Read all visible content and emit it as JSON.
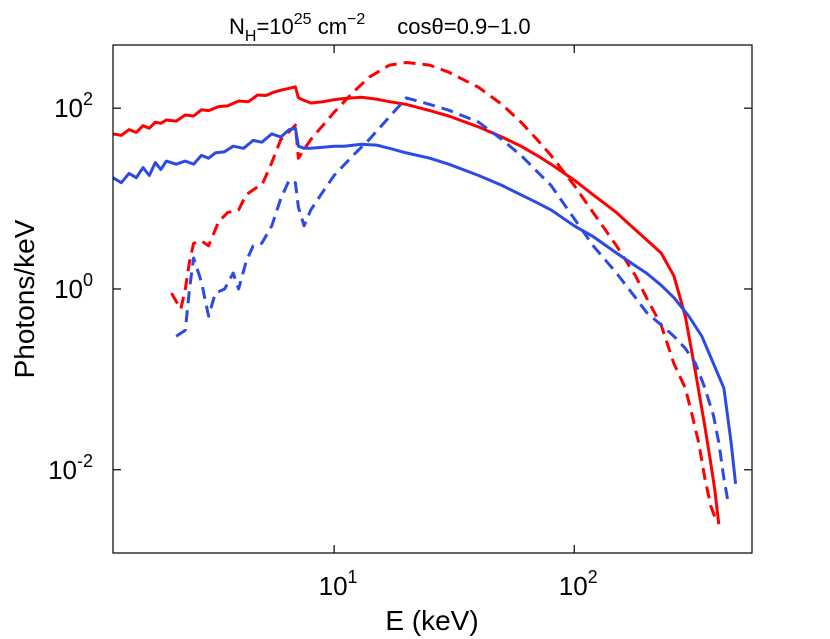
{
  "chart_data": {
    "type": "line",
    "title_parts": {
      "nh_base": "N",
      "nh_sub": "H",
      "nh_eq": "=10",
      "nh_exp": "25",
      "nh_unit": " cm",
      "nh_unit_exp": "−2",
      "cos": "cosθ=0.9−1.0"
    },
    "xlabel": "E (keV)",
    "ylabel": "Photons/keV",
    "xscale": "log",
    "yscale": "log",
    "xlim": [
      1.2,
      550
    ],
    "ylim": [
      0.0012,
      500
    ],
    "grid": false,
    "x_ticks": [
      {
        "value": 10,
        "base": "10",
        "exp": "1"
      },
      {
        "value": 100,
        "base": "10",
        "exp": "2"
      }
    ],
    "y_ticks": [
      {
        "value": 0.01,
        "base": "10",
        "exp": "-2"
      },
      {
        "value": 1,
        "base": "10",
        "exp": "0"
      },
      {
        "value": 100,
        "base": "10",
        "exp": "2"
      }
    ],
    "series": [
      {
        "name": "red-solid",
        "color": "#ff0000",
        "style": "solid",
        "points": [
          [
            1.2,
            52
          ],
          [
            1.3,
            50
          ],
          [
            1.4,
            58
          ],
          [
            1.5,
            54
          ],
          [
            1.6,
            64
          ],
          [
            1.7,
            60
          ],
          [
            1.8,
            70
          ],
          [
            1.9,
            68
          ],
          [
            2.0,
            74
          ],
          [
            2.2,
            72
          ],
          [
            2.4,
            84
          ],
          [
            2.6,
            82
          ],
          [
            2.8,
            96
          ],
          [
            3.0,
            94
          ],
          [
            3.3,
            104
          ],
          [
            3.6,
            106
          ],
          [
            4.0,
            120
          ],
          [
            4.4,
            118
          ],
          [
            4.8,
            140
          ],
          [
            5.2,
            138
          ],
          [
            5.6,
            150
          ],
          [
            6.0,
            158
          ],
          [
            6.5,
            166
          ],
          [
            6.9,
            172
          ],
          [
            7.1,
            130
          ],
          [
            7.5,
            122
          ],
          [
            8,
            114
          ],
          [
            9,
            118
          ],
          [
            10,
            124
          ],
          [
            11,
            128
          ],
          [
            12,
            130
          ],
          [
            13,
            132
          ],
          [
            15,
            126
          ],
          [
            17,
            118
          ],
          [
            20,
            110
          ],
          [
            25,
            94
          ],
          [
            30,
            82
          ],
          [
            40,
            62
          ],
          [
            50,
            48
          ],
          [
            60,
            38
          ],
          [
            70,
            30
          ],
          [
            80,
            24
          ],
          [
            100,
            16
          ],
          [
            120,
            11
          ],
          [
            150,
            7
          ],
          [
            180,
            4.5
          ],
          [
            200,
            3.5
          ],
          [
            230,
            2.5
          ],
          [
            260,
            1.4
          ],
          [
            290,
            0.5
          ],
          [
            320,
            0.12
          ],
          [
            350,
            0.03
          ],
          [
            370,
            0.012
          ],
          [
            385,
            0.006
          ],
          [
            400,
            0.0025
          ]
        ]
      },
      {
        "name": "red-dashed",
        "color": "#ff0000",
        "style": "dashed",
        "points": [
          [
            2.1,
            0.9
          ],
          [
            2.3,
            0.6
          ],
          [
            2.4,
            1.0
          ],
          [
            2.5,
            2.0
          ],
          [
            2.6,
            3.2
          ],
          [
            2.8,
            3.4
          ],
          [
            3.0,
            3.0
          ],
          [
            3.3,
            5.5
          ],
          [
            3.6,
            7.0
          ],
          [
            4.0,
            7.5
          ],
          [
            4.3,
            11
          ],
          [
            4.7,
            13
          ],
          [
            5.0,
            14
          ],
          [
            5.5,
            25
          ],
          [
            6.0,
            45
          ],
          [
            6.5,
            55
          ],
          [
            6.9,
            65
          ],
          [
            7.1,
            28
          ],
          [
            7.5,
            35
          ],
          [
            8,
            45
          ],
          [
            9,
            65
          ],
          [
            10,
            90
          ],
          [
            12,
            150
          ],
          [
            14,
            220
          ],
          [
            17,
            300
          ],
          [
            20,
            320
          ],
          [
            25,
            300
          ],
          [
            30,
            250
          ],
          [
            40,
            170
          ],
          [
            50,
            110
          ],
          [
            60,
            70
          ],
          [
            70,
            45
          ],
          [
            80,
            30
          ],
          [
            100,
            14
          ],
          [
            120,
            7
          ],
          [
            150,
            3
          ],
          [
            180,
            1.4
          ],
          [
            200,
            0.8
          ],
          [
            230,
            0.4
          ],
          [
            260,
            0.15
          ],
          [
            290,
            0.08
          ],
          [
            310,
            0.04
          ],
          [
            330,
            0.02
          ],
          [
            350,
            0.008
          ],
          [
            370,
            0.004
          ],
          [
            385,
            0.003
          ]
        ]
      },
      {
        "name": "blue-solid",
        "color": "#2b4ae6",
        "style": "solid",
        "points": [
          [
            1.2,
            17
          ],
          [
            1.3,
            15
          ],
          [
            1.4,
            19
          ],
          [
            1.5,
            17
          ],
          [
            1.6,
            22
          ],
          [
            1.7,
            18
          ],
          [
            1.8,
            25
          ],
          [
            1.9,
            21
          ],
          [
            2.0,
            26
          ],
          [
            2.2,
            24
          ],
          [
            2.4,
            26
          ],
          [
            2.6,
            24
          ],
          [
            2.8,
            30
          ],
          [
            3.0,
            28
          ],
          [
            3.2,
            32
          ],
          [
            3.5,
            33
          ],
          [
            3.8,
            38
          ],
          [
            4.2,
            36
          ],
          [
            4.6,
            44
          ],
          [
            5.0,
            42
          ],
          [
            5.5,
            52
          ],
          [
            6.0,
            48
          ],
          [
            6.5,
            58
          ],
          [
            6.9,
            60
          ],
          [
            7.1,
            38
          ],
          [
            7.5,
            36
          ],
          [
            8,
            36
          ],
          [
            9,
            37
          ],
          [
            10,
            38
          ],
          [
            11,
            38
          ],
          [
            13,
            40
          ],
          [
            15,
            39
          ],
          [
            17,
            36
          ],
          [
            20,
            32
          ],
          [
            25,
            28
          ],
          [
            30,
            24
          ],
          [
            40,
            18
          ],
          [
            50,
            14
          ],
          [
            60,
            11
          ],
          [
            70,
            9
          ],
          [
            80,
            7.5
          ],
          [
            100,
            5
          ],
          [
            120,
            3.8
          ],
          [
            150,
            2.5
          ],
          [
            180,
            1.8
          ],
          [
            200,
            1.5
          ],
          [
            230,
            1.1
          ],
          [
            260,
            0.8
          ],
          [
            300,
            0.5
          ],
          [
            340,
            0.3
          ],
          [
            380,
            0.15
          ],
          [
            420,
            0.08
          ],
          [
            450,
            0.02
          ],
          [
            470,
            0.007
          ]
        ]
      },
      {
        "name": "blue-dashed",
        "color": "#2b4ae6",
        "style": "dashed",
        "points": [
          [
            2.2,
            0.3
          ],
          [
            2.4,
            0.35
          ],
          [
            2.5,
            1.0
          ],
          [
            2.6,
            2.2
          ],
          [
            2.8,
            1.2
          ],
          [
            3.0,
            0.5
          ],
          [
            3.2,
            0.9
          ],
          [
            3.5,
            1.0
          ],
          [
            3.8,
            1.5
          ],
          [
            4.0,
            1.0
          ],
          [
            4.3,
            2.0
          ],
          [
            4.6,
            3.0
          ],
          [
            5.0,
            3.2
          ],
          [
            5.5,
            5.0
          ],
          [
            6.0,
            10
          ],
          [
            6.5,
            16
          ],
          [
            6.9,
            15
          ],
          [
            7.1,
            8
          ],
          [
            7.5,
            5
          ],
          [
            8,
            7.5
          ],
          [
            9,
            12
          ],
          [
            10,
            18
          ],
          [
            12,
            30
          ],
          [
            14,
            45
          ],
          [
            17,
            80
          ],
          [
            20,
            130
          ],
          [
            25,
            110
          ],
          [
            30,
            95
          ],
          [
            40,
            70
          ],
          [
            50,
            45
          ],
          [
            60,
            30
          ],
          [
            70,
            20
          ],
          [
            80,
            14
          ],
          [
            100,
            6
          ],
          [
            120,
            3
          ],
          [
            150,
            1.5
          ],
          [
            180,
            0.8
          ],
          [
            200,
            0.55
          ],
          [
            230,
            0.4
          ],
          [
            260,
            0.3
          ],
          [
            290,
            0.22
          ],
          [
            320,
            0.15
          ],
          [
            350,
            0.08
          ],
          [
            380,
            0.04
          ],
          [
            400,
            0.02
          ],
          [
            420,
            0.008
          ],
          [
            440,
            0.004
          ]
        ]
      }
    ]
  }
}
